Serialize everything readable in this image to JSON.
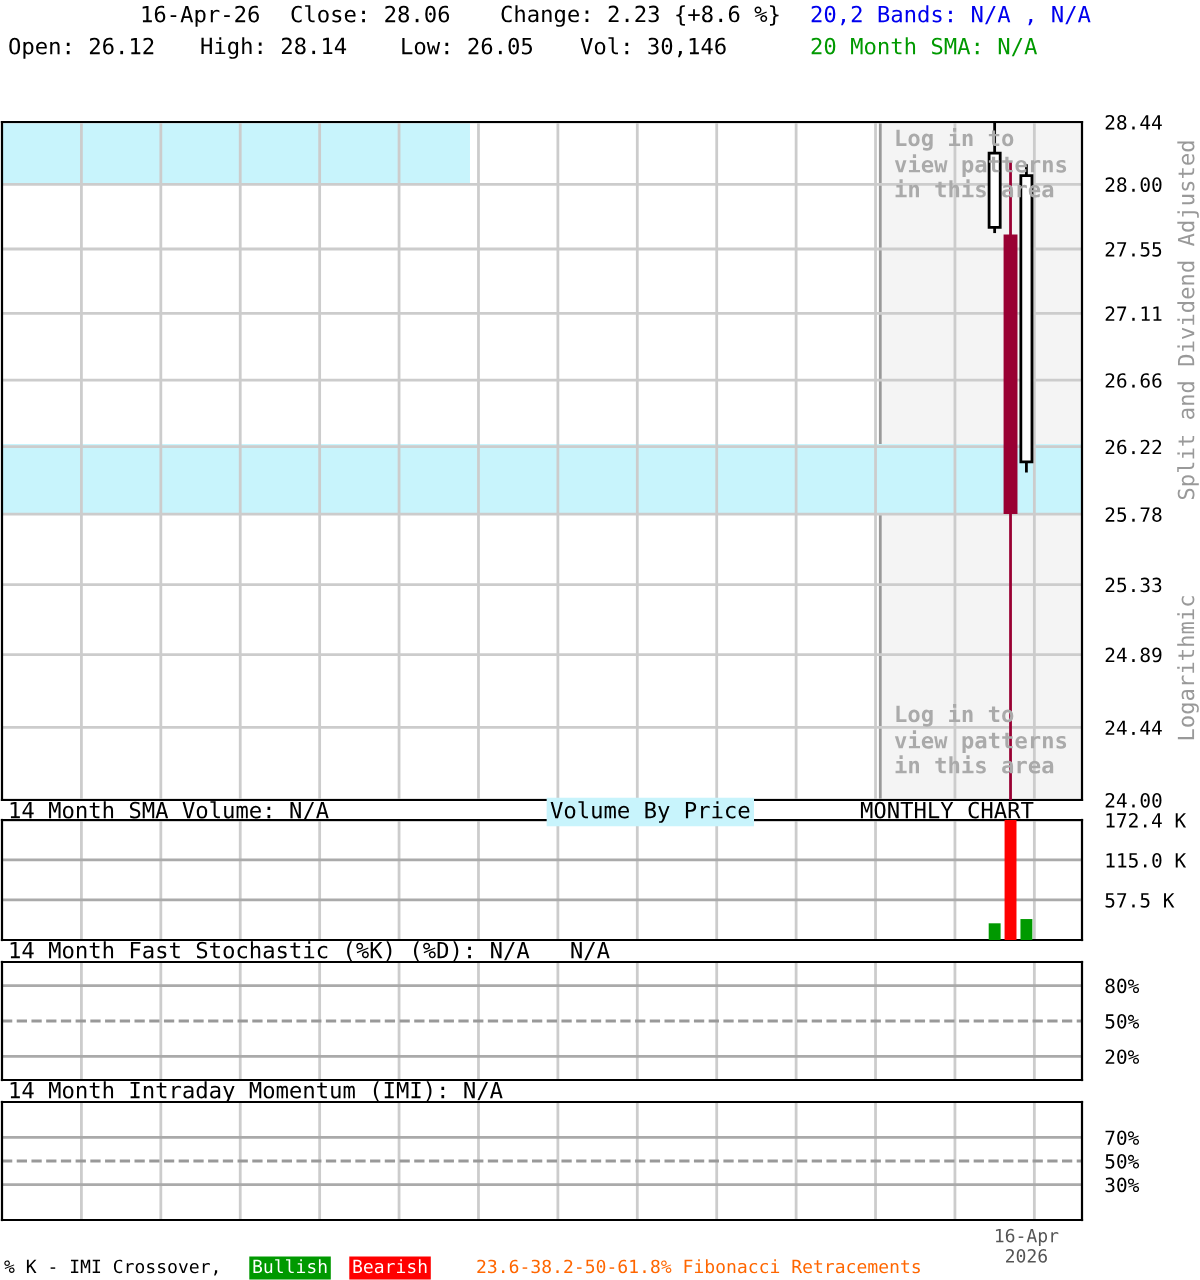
{
  "chart_data": [
    {
      "type": "candlestick",
      "categories": [
        null,
        null,
        null,
        null,
        null,
        null,
        null,
        null,
        null,
        null,
        null,
        null,
        null,
        null,
        null,
        null,
        null,
        null,
        null,
        null,
        null,
        null,
        null,
        null,
        null,
        null,
        null,
        null,
        null,
        null,
        null,
        null,
        null,
        null,
        null,
        null,
        null,
        null,
        null,
        null,
        null,
        null,
        null,
        null,
        null,
        null,
        null,
        null,
        null,
        null,
        null,
        null,
        null,
        null,
        null,
        null,
        null,
        null,
        null,
        null,
        null,
        null,
        null,
        null,
        null,
        null,
        null,
        null
      ],
      "ohlc": [
        null,
        null,
        null,
        null,
        null,
        null,
        null,
        null,
        null,
        null,
        null,
        null,
        null,
        null,
        null,
        null,
        null,
        null,
        null,
        null,
        null,
        null,
        null,
        null,
        null,
        null,
        null,
        null,
        null,
        null,
        null,
        null,
        null,
        null,
        null,
        null,
        null,
        null,
        null,
        null,
        null,
        null,
        null,
        null,
        null,
        null,
        null,
        null,
        null,
        null,
        null,
        null,
        null,
        null,
        null,
        null,
        null,
        null,
        null,
        null,
        null,
        null,
        [
          27.7,
          28.44,
          27.66,
          28.22
        ],
        [
          27.64,
          28.16,
          24.0,
          25.79
        ],
        [
          26.12,
          28.14,
          26.05,
          28.06
        ],
        null,
        null,
        null
      ],
      "colors": [
        null,
        null,
        null,
        null,
        null,
        null,
        null,
        null,
        null,
        null,
        null,
        null,
        null,
        null,
        null,
        null,
        null,
        null,
        null,
        null,
        null,
        null,
        null,
        null,
        null,
        null,
        null,
        null,
        null,
        null,
        null,
        null,
        null,
        null,
        null,
        null,
        null,
        null,
        null,
        null,
        null,
        null,
        null,
        null,
        null,
        null,
        null,
        null,
        null,
        null,
        null,
        null,
        null,
        null,
        null,
        null,
        null,
        null,
        null,
        null,
        null,
        null,
        "#ffffff",
        "#990033",
        "#ffffff",
        null,
        null,
        null
      ],
      "log": true,
      "ylim": [
        24,
        28.44
      ],
      "yticks": [
        28.44,
        {
          "value": 28,
          "label": "28.00"
        },
        27.55,
        27.11,
        26.66,
        26.22,
        25.78,
        25.33,
        24.89,
        24.44,
        {
          "value": 24,
          "label": "24.00"
        }
      ],
      "grid": true,
      "tick_labels": "y",
      "annotations": [
        "16-Apr-26",
        "Close: 28.06",
        "Change: 2.23 {+8.6 %}",
        "20,2 Bands: N/A , N/A",
        "Open: 26.12",
        "High: 28.14",
        "Low: 26.05",
        "Vol: 30,146",
        "20 Month SMA: N/A",
        "Log in to\nview patterns\nin this area",
        "Log in to\nview patterns\nin this area",
        "Split and Dividend Adjusted",
        "Logarithmic",
        "Volume By Price"
      ]
    },
    {
      "type": "bar",
      "title": "14 Month SMA Volume: N/A",
      "categories": [
        null,
        null,
        null,
        null,
        null,
        null,
        null,
        null,
        null,
        null,
        null,
        null,
        null,
        null,
        null,
        null,
        null,
        null,
        null,
        null,
        null,
        null,
        null,
        null,
        null,
        null,
        null,
        null,
        null,
        null,
        null,
        null,
        null,
        null,
        null,
        null,
        null,
        null,
        null,
        null,
        null,
        null,
        null,
        null,
        null,
        null,
        null,
        null,
        null,
        null,
        null,
        null,
        null,
        null,
        null,
        null,
        null,
        null,
        null,
        null,
        null,
        null,
        null,
        null,
        null,
        null,
        null,
        null
      ],
      "values": [
        null,
        null,
        null,
        null,
        null,
        null,
        null,
        null,
        null,
        null,
        null,
        null,
        null,
        null,
        null,
        null,
        null,
        null,
        null,
        null,
        null,
        null,
        null,
        null,
        null,
        null,
        null,
        null,
        null,
        null,
        null,
        null,
        null,
        null,
        null,
        null,
        null,
        null,
        null,
        null,
        null,
        null,
        null,
        null,
        null,
        null,
        null,
        null,
        null,
        null,
        null,
        null,
        null,
        null,
        null,
        null,
        null,
        null,
        null,
        null,
        null,
        null,
        24,
        172.4,
        30.1,
        null,
        null,
        null
      ],
      "colors": [
        null,
        null,
        null,
        null,
        null,
        null,
        null,
        null,
        null,
        null,
        null,
        null,
        null,
        null,
        null,
        null,
        null,
        null,
        null,
        null,
        null,
        null,
        null,
        null,
        null,
        null,
        null,
        null,
        null,
        null,
        null,
        null,
        null,
        null,
        null,
        null,
        null,
        null,
        null,
        null,
        null,
        null,
        null,
        null,
        null,
        null,
        null,
        null,
        null,
        null,
        null,
        null,
        null,
        null,
        null,
        null,
        null,
        null,
        null,
        null,
        null,
        null,
        "#009900",
        "#ff0000",
        "#009900",
        null,
        null,
        null
      ],
      "ylim": [
        0,
        172.4
      ],
      "yticks": [
        {
          "value": 172.4,
          "label": "172.4 K"
        },
        {
          "value": 115,
          "label": "115.0 K"
        },
        {
          "value": 57.5,
          "label": "57.5 K"
        }
      ],
      "grid": true,
      "tick_labels": "y",
      "annotations": [
        "MONTHLY CHART"
      ]
    },
    {
      "type": "line",
      "title": "14 Month Fast Stochastic (%K) (%D): N/A   N/A",
      "categories": [
        null,
        null,
        null,
        null,
        null,
        null,
        null,
        null,
        null,
        null,
        null,
        null,
        null,
        null,
        null,
        null,
        null,
        null,
        null,
        null,
        null,
        null,
        null,
        null,
        null,
        null,
        null,
        null,
        null,
        null,
        null,
        null,
        null,
        null,
        null,
        null,
        null,
        null,
        null,
        null,
        null,
        null,
        null,
        null,
        null,
        null,
        null,
        null,
        null,
        null,
        null,
        null,
        null,
        null,
        null,
        null,
        null,
        null,
        null,
        null,
        null,
        null,
        null,
        null,
        null,
        null,
        null,
        null
      ],
      "ylim": [
        0,
        100
      ],
      "yticks": [
        {
          "value": 80,
          "label": "80%"
        },
        {
          "value": 50,
          "label": "50%"
        },
        {
          "value": 20,
          "label": "20%"
        }
      ],
      "grid": true,
      "tick_labels": "y",
      "ref_lines": [
        {
          "axis": "y",
          "value": 50,
          "line_style": "dashed",
          "color": "#999999"
        }
      ]
    },
    {
      "type": "line",
      "title": "14 Month Intraday Momentum (IMI): N/A",
      "categories": [
        null,
        null,
        null,
        null,
        null,
        null,
        null,
        null,
        null,
        null,
        null,
        null,
        null,
        null,
        null,
        null,
        null,
        null,
        null,
        null,
        null,
        null,
        null,
        null,
        null,
        null,
        null,
        null,
        null,
        null,
        null,
        null,
        null,
        null,
        null,
        null,
        null,
        null,
        null,
        null,
        null,
        null,
        null,
        null,
        null,
        null,
        null,
        null,
        null,
        null,
        null,
        null,
        null,
        null,
        null,
        null,
        null,
        null,
        null,
        null,
        null,
        null,
        null,
        null,
        "16-Apr\n2026",
        null,
        null,
        null
      ],
      "ylim": [
        0,
        100
      ],
      "yticks": [
        {
          "value": 70,
          "label": "70%"
        },
        {
          "value": 50,
          "label": "50%"
        },
        {
          "value": 30,
          "label": "30%"
        }
      ],
      "grid": true,
      "ref_lines": [
        {
          "axis": "y",
          "value": 50,
          "line_style": "dashed",
          "color": "#999999"
        }
      ],
      "annotations": [
        "% K - IMI Crossover,",
        "Bullish",
        "Bearish",
        "23.6-38.2-50-61.8% Fibonacci Retracements"
      ]
    }
  ]
}
